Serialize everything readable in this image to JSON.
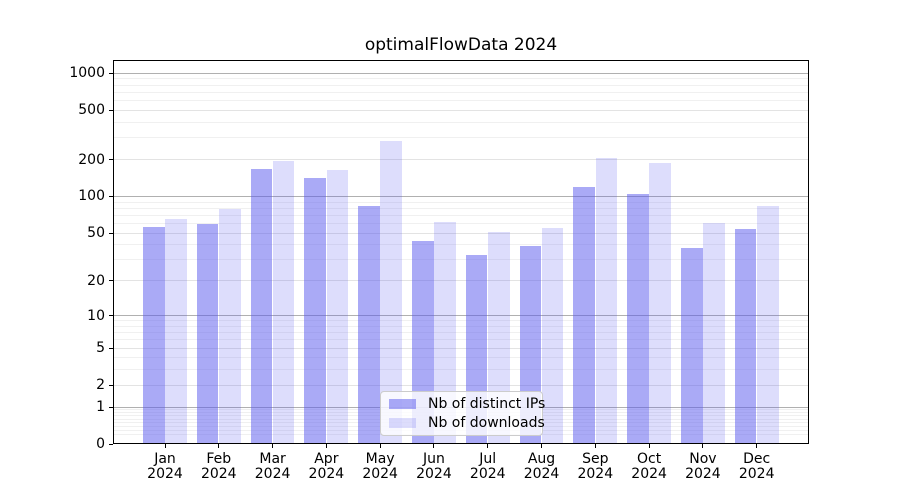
{
  "title": "optimalFlowData 2024",
  "chart_data": {
    "type": "bar",
    "title": "optimalFlowData 2024",
    "xlabel": "",
    "ylabel": "",
    "categories": [
      "Jan 2024",
      "Feb 2024",
      "Mar 2024",
      "Apr 2024",
      "May 2024",
      "Jun 2024",
      "Jul 2024",
      "Aug 2024",
      "Sep 2024",
      "Oct 2024",
      "Nov 2024",
      "Dec 2024"
    ],
    "x_tick_line1": [
      "Jan",
      "Feb",
      "Mar",
      "Apr",
      "May",
      "Jun",
      "Jul",
      "Aug",
      "Sep",
      "Oct",
      "Nov",
      "Dec"
    ],
    "x_tick_line2": "2024",
    "series": [
      {
        "name": "Nb of distinct IPs",
        "color": "#5555ee",
        "alpha": 0.5,
        "apparent_color": "#aaaaf6",
        "values": [
          56,
          59,
          167,
          141,
          84,
          43,
          33,
          39,
          120,
          105,
          38,
          54
        ]
      },
      {
        "name": "Nb of downloads",
        "color": "#5555ee",
        "alpha": 0.2,
        "apparent_color": "#ddddfb",
        "values": [
          66,
          79,
          195,
          165,
          283,
          62,
          51,
          55,
          207,
          186,
          61,
          84
        ]
      }
    ],
    "yscale": "log1p",
    "y_tick_values": [
      0,
      1,
      2,
      5,
      10,
      20,
      50,
      100,
      200,
      500,
      1000
    ],
    "ylim": [
      0,
      1250
    ],
    "grid": "on",
    "legend_position": "lower-center"
  },
  "colors": {
    "grid_major": "#b0b0b0",
    "grid_medium": "#e3e3e3",
    "grid_minor": "#f0f0f0",
    "axis": "#000000",
    "background": "#ffffff",
    "legend_border": "#cccccc"
  }
}
